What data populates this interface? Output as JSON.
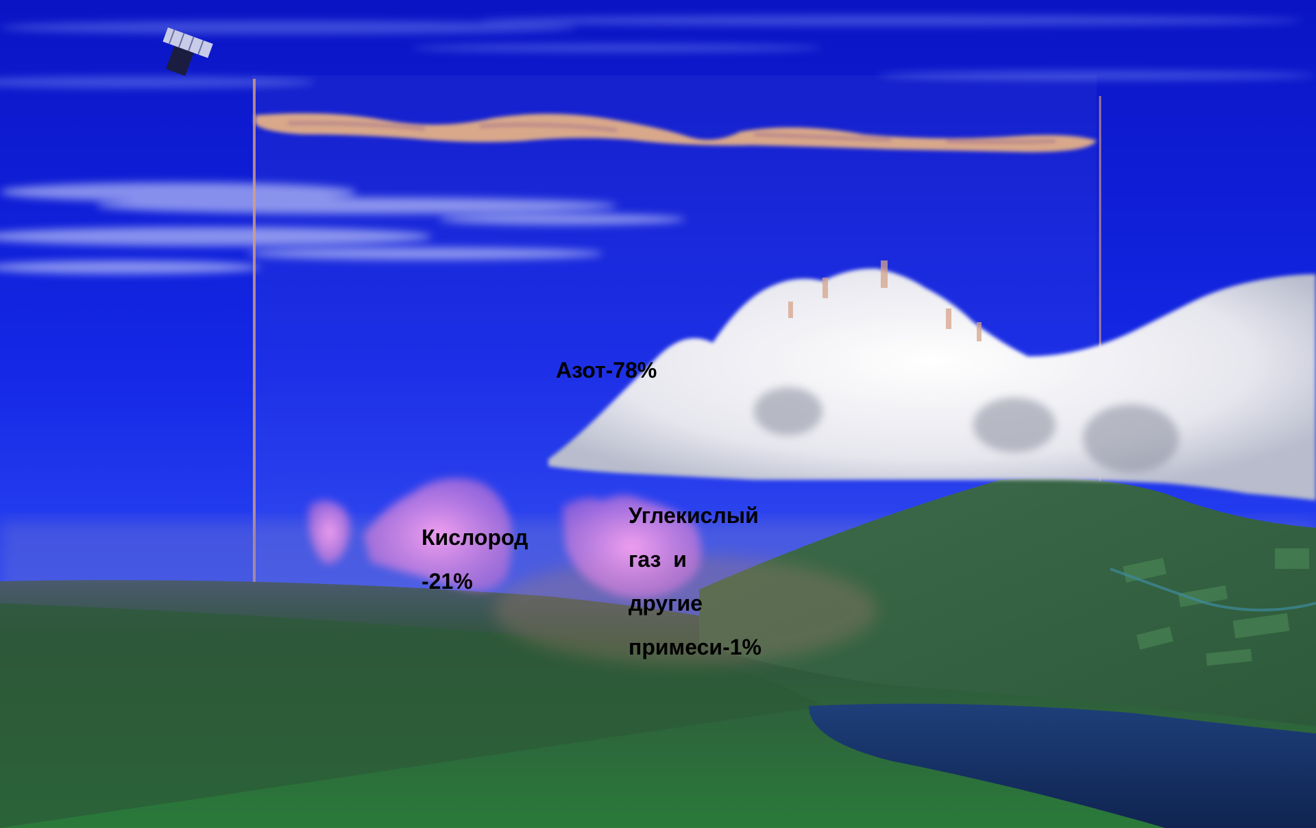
{
  "labels": {
    "nitrogen": "Азот-78%",
    "oxygen": [
      "Кислород",
      "-21%"
    ],
    "co2": [
      "Углекислый",
      "газ  и",
      "другие",
      "примеси-1%"
    ]
  },
  "colors": {
    "sky_top": "#0a14c4",
    "sky_mid": "#1832f0",
    "horizon": "#5a6ad8",
    "cloud": "#f4f4f8",
    "oxygen_cloud": "#e08ae0",
    "stratus": "#d8a88c",
    "ground": "#2f5a36",
    "water": "#1c3a70"
  },
  "icons": {
    "satellite": "satellite-icon"
  }
}
